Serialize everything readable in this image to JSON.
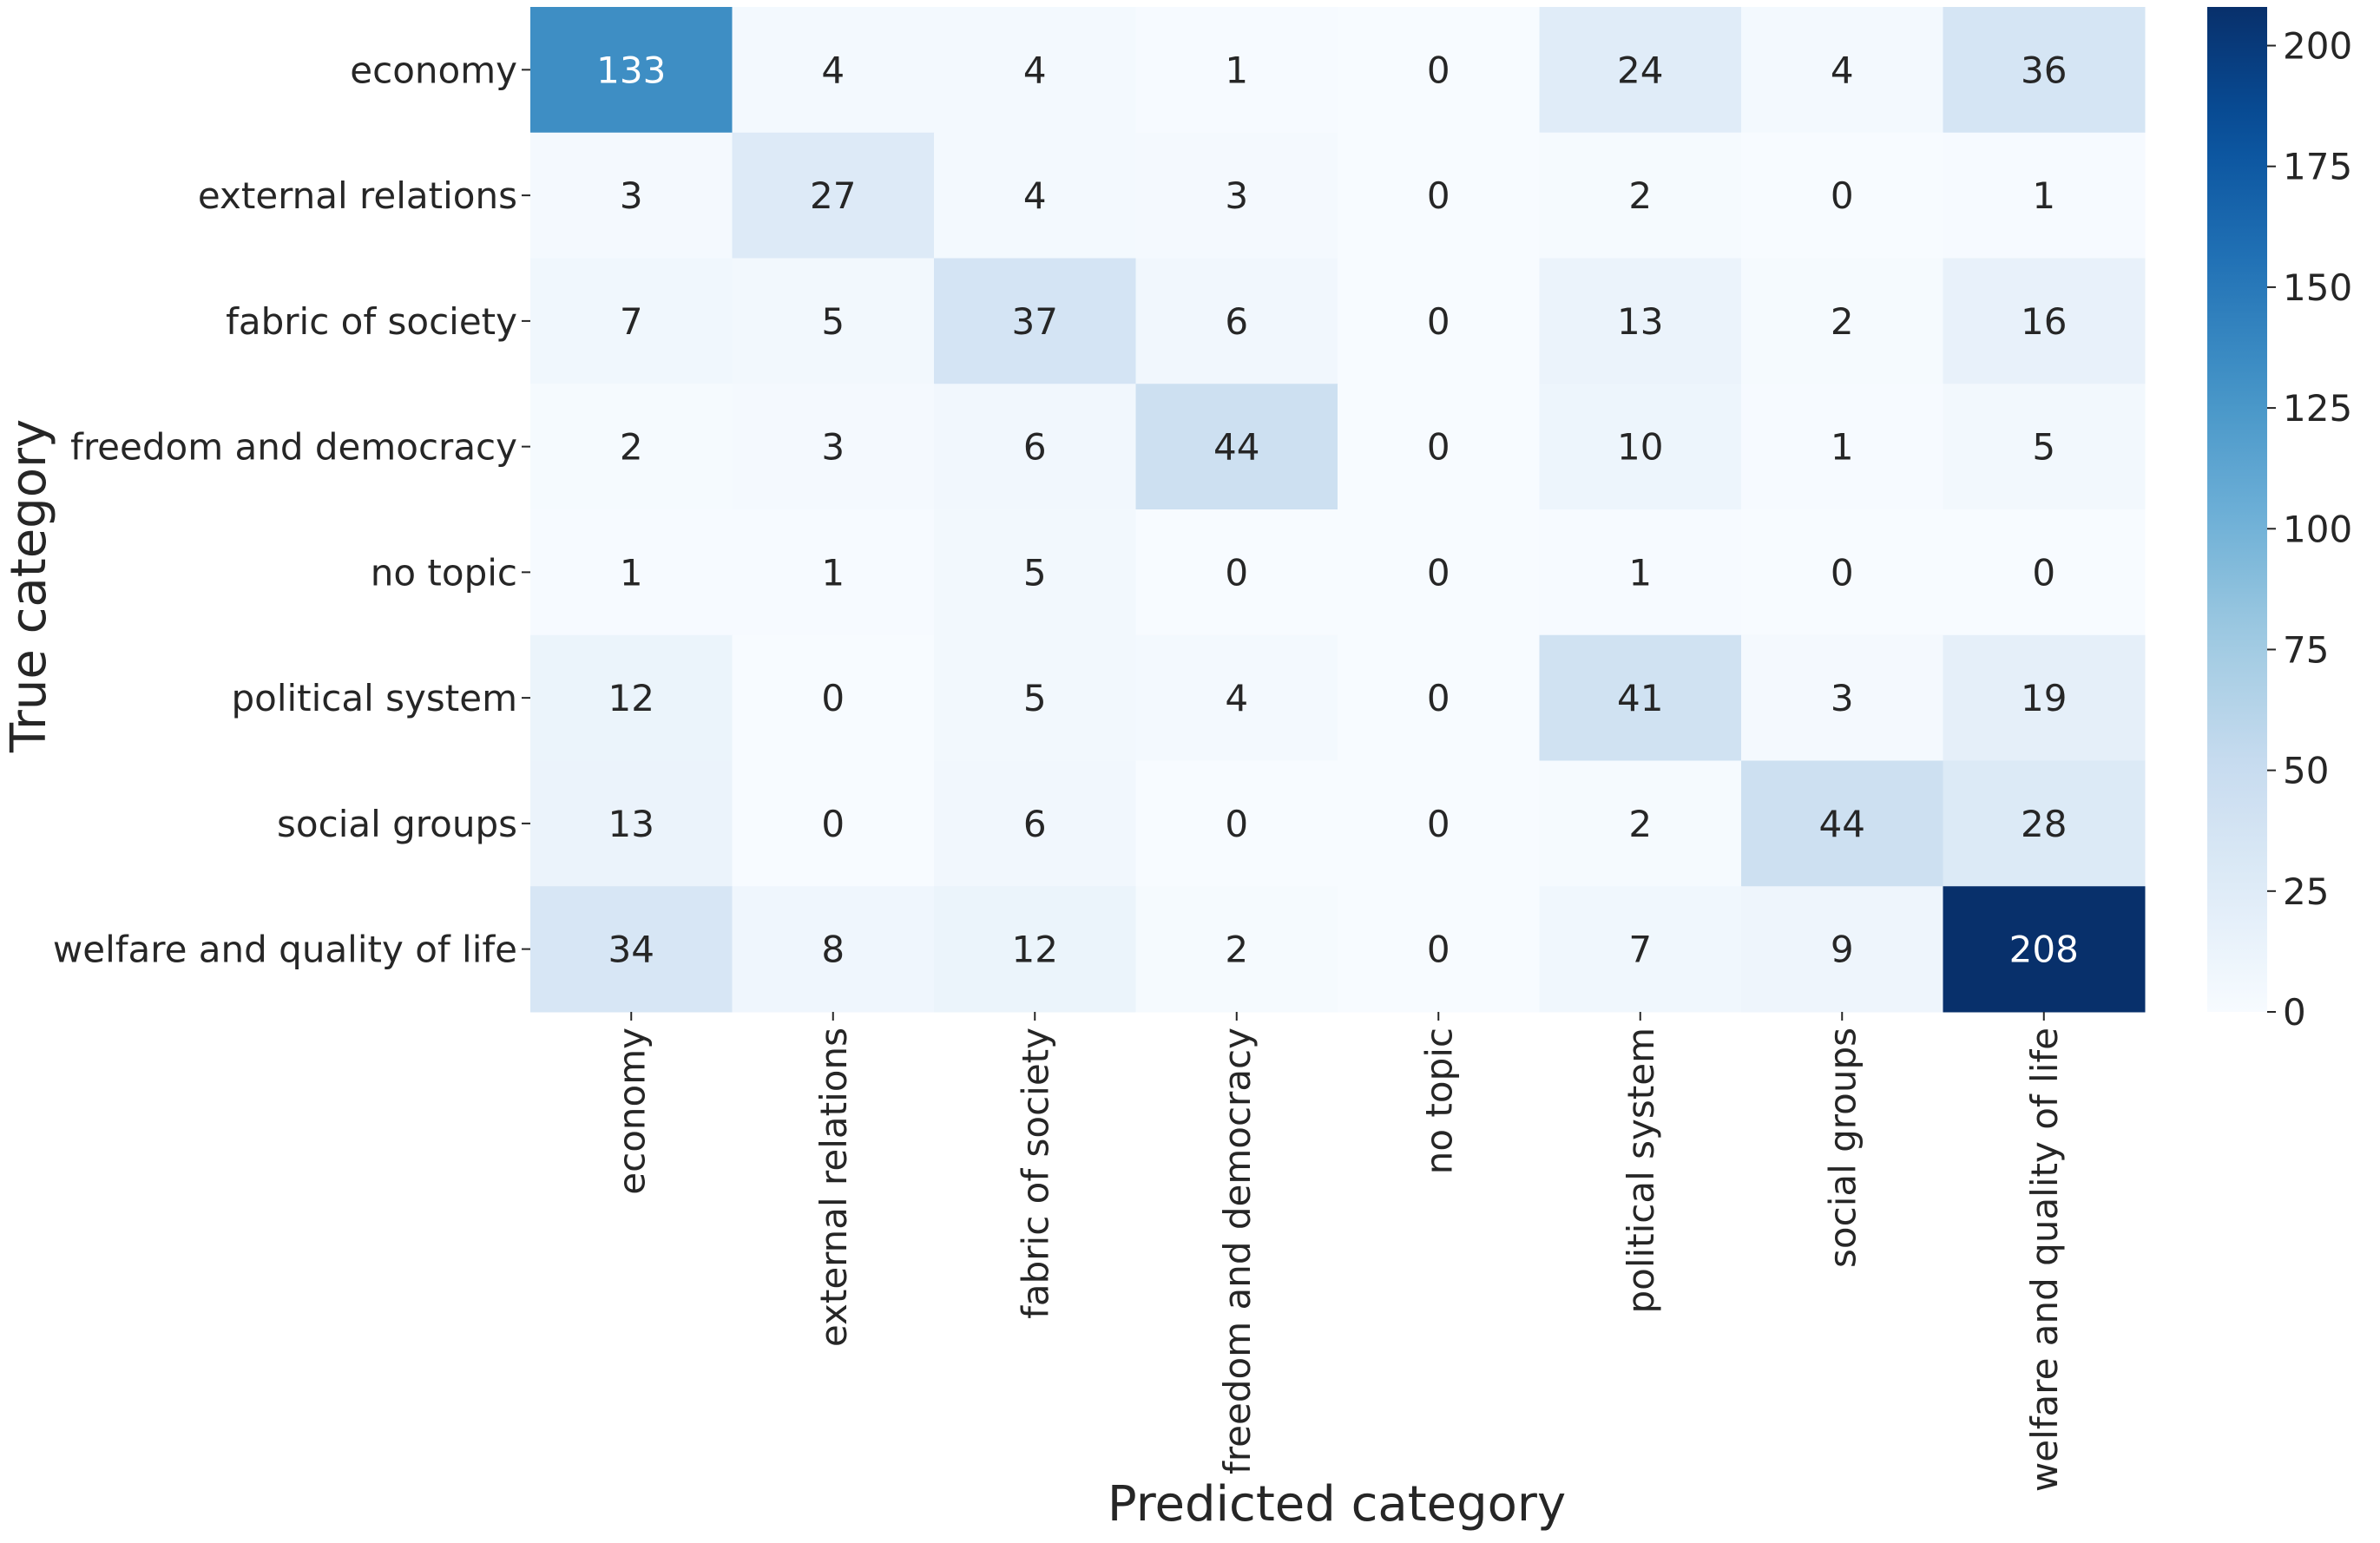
{
  "chart_data": {
    "type": "heatmap",
    "title": "",
    "xlabel": "Predicted category",
    "ylabel": "True category",
    "x_categories": [
      "economy",
      "external relations",
      "fabric of society",
      "freedom and democracy",
      "no topic",
      "political system",
      "social groups",
      "welfare and quality of life"
    ],
    "y_categories": [
      "economy",
      "external relations",
      "fabric of society",
      "freedom and democracy",
      "no topic",
      "political system",
      "social groups",
      "welfare and quality of life"
    ],
    "values": [
      [
        133,
        4,
        4,
        1,
        0,
        24,
        4,
        36
      ],
      [
        3,
        27,
        4,
        3,
        0,
        2,
        0,
        1
      ],
      [
        7,
        5,
        37,
        6,
        0,
        13,
        2,
        16
      ],
      [
        2,
        3,
        6,
        44,
        0,
        10,
        1,
        5
      ],
      [
        1,
        1,
        5,
        0,
        0,
        1,
        0,
        0
      ],
      [
        12,
        0,
        5,
        4,
        0,
        41,
        3,
        19
      ],
      [
        13,
        0,
        6,
        0,
        0,
        2,
        44,
        28
      ],
      [
        34,
        8,
        12,
        2,
        0,
        7,
        9,
        208
      ]
    ],
    "colormap": "Blues",
    "color_range": [
      0,
      208
    ],
    "colorbar_ticks": [
      0,
      25,
      50,
      75,
      100,
      125,
      150,
      175,
      200
    ],
    "annotations": true,
    "grid": false,
    "colors": {
      "low": "#f7fbff",
      "high": "#08306b",
      "text_dark": "#262626",
      "text_light": "#ffffff"
    }
  }
}
